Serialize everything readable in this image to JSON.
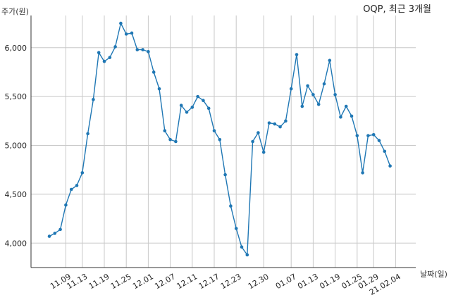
{
  "chart_data": {
    "type": "line",
    "title": "OQP, 최근 3개월",
    "ylabel": "주가(원)",
    "xlabel": "날짜(일)",
    "ylim": [
      3750,
      6330
    ],
    "yticks": [
      4000,
      4500,
      5000,
      5500,
      6000
    ],
    "ytick_labels": [
      "4,000",
      "4,500",
      "5,000",
      "5,500",
      "6,000"
    ],
    "xtick_labels": [
      "11.09",
      "11.13",
      "11.19",
      "11.25",
      "12.01",
      "12.07",
      "12.11",
      "12.17",
      "12.23",
      "12.30",
      "01.07",
      "01.13",
      "01.19",
      "01.25",
      "01.29",
      "21.02.04"
    ],
    "xtick_index": [
      3,
      6,
      10,
      14,
      18,
      22,
      26,
      30,
      34,
      39,
      44,
      48,
      52,
      56,
      59,
      63
    ],
    "grid": true,
    "series": [
      {
        "color": "#1f77b4",
        "values": [
          4070,
          4100,
          4140,
          4390,
          4550,
          4590,
          4720,
          5120,
          5470,
          5950,
          5860,
          5900,
          6010,
          6250,
          6140,
          6150,
          5980,
          5980,
          5960,
          5750,
          5580,
          5150,
          5060,
          5040,
          5410,
          5340,
          5390,
          5500,
          5460,
          5380,
          5150,
          5060,
          4700,
          4380,
          4150,
          3960,
          3880,
          5040,
          5130,
          4930,
          5230,
          5220,
          5190,
          5250,
          5580,
          5930,
          5400,
          5610,
          5520,
          5420,
          5630,
          5870,
          5520,
          5290,
          5400,
          5300,
          5100,
          4720,
          5100,
          5110,
          5050,
          4940,
          4790
        ]
      }
    ]
  }
}
